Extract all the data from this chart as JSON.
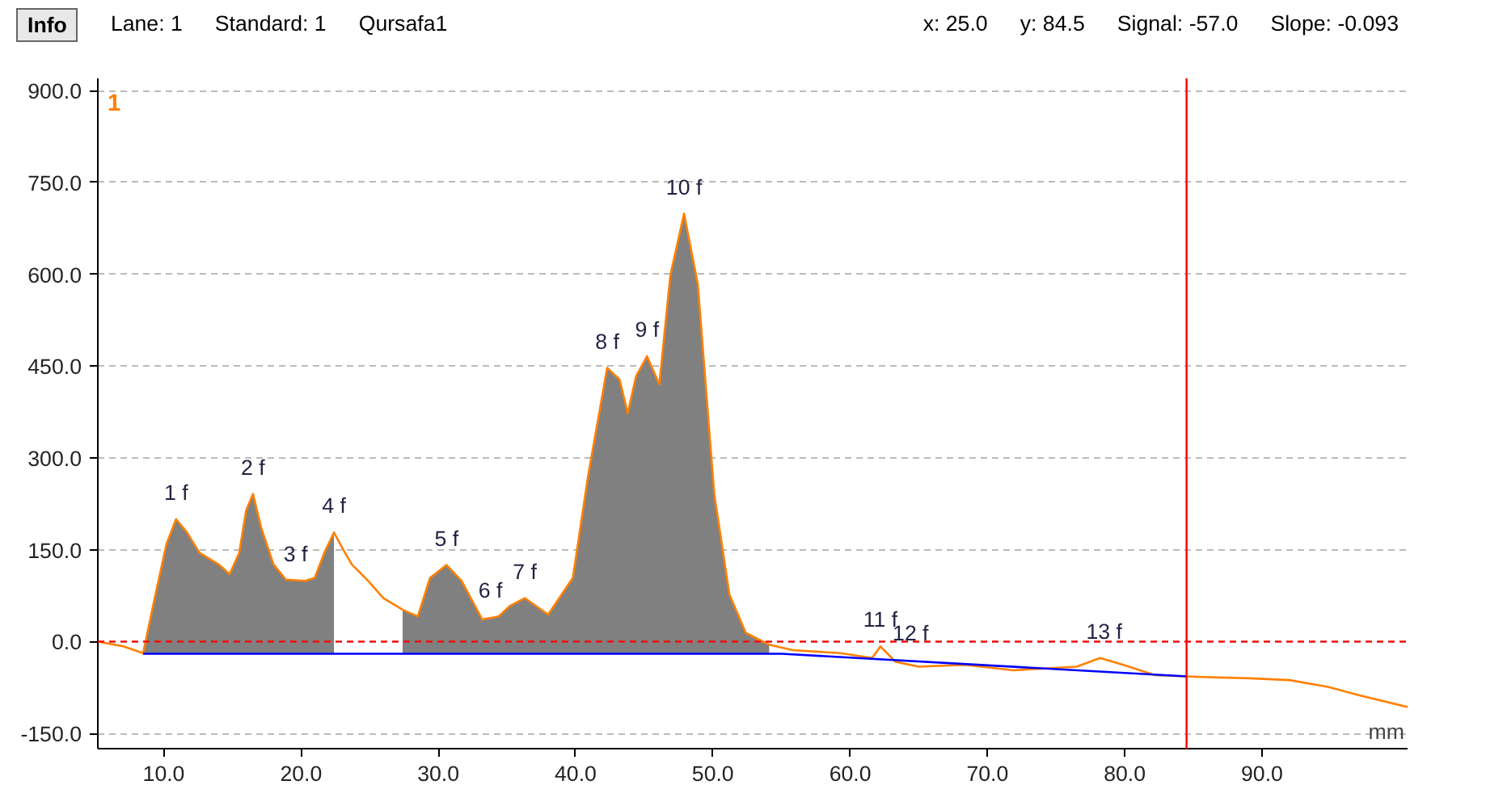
{
  "chart_data": {
    "type": "line",
    "title": "1",
    "xlabel": "mm",
    "annotations": [
      "Info",
      "Lane:  1",
      "Standard:  1",
      "Qursafa1",
      "x: 25.0",
      "y: 84.5",
      "Signal:  -57.0",
      "Slope:  -0.093",
      {
        "text": "1 f",
        "x": 10.9,
        "y": 200
      },
      {
        "text": "2 f",
        "x": 16.5,
        "y": 241
      },
      {
        "text": "3 f",
        "x": 19.6,
        "y": 99
      },
      {
        "text": "4 f",
        "x": 22.4,
        "y": 178
      },
      {
        "text": "5 f",
        "x": 30.6,
        "y": 125
      },
      {
        "text": "6 f",
        "x": 33.8,
        "y": 40
      },
      {
        "text": "7 f",
        "x": 36.3,
        "y": 71
      },
      {
        "text": "8 f",
        "x": 42.3,
        "y": 447
      },
      {
        "text": "9 f",
        "x": 45.2,
        "y": 466
      },
      {
        "text": "10 f",
        "x": 47.9,
        "y": 699
      },
      {
        "text": "11 f",
        "x": 62.2,
        "y": -8
      },
      {
        "text": "12 f",
        "x": 64.4,
        "y": -30
      },
      {
        "text": "13 f",
        "x": 78.5,
        "y": -27
      }
    ],
    "series": [
      {
        "color": "#ff8000",
        "x": [
          5.2,
          7.1,
          8.5,
          9.4,
          10.2,
          10.9,
          11.7,
          12.6,
          14.0,
          14.8,
          15.5,
          16.0,
          16.5,
          17.1,
          18.0,
          18.9,
          20.3,
          21.0,
          21.7,
          22.4,
          23.2,
          23.7,
          24.9,
          26.0,
          27.4,
          28.5,
          29.4,
          30.6,
          31.7,
          33.2,
          34.4,
          35.2,
          36.3,
          38.0,
          39.8,
          40.9,
          42.3,
          43.2,
          43.8,
          44.4,
          45.2,
          46.1,
          46.9,
          47.9,
          48.9,
          50.1,
          51.2,
          52.4,
          54.1,
          55.8,
          59.3,
          61.6,
          62.2,
          63.3,
          65.0,
          68.4,
          71.9,
          76.5,
          78.2,
          79.9,
          82.2,
          85.6,
          89.1,
          92.0,
          94.8,
          97.1,
          100.6
        ],
        "values": [
          0,
          -8,
          -19,
          77,
          159,
          200,
          178,
          145,
          126,
          110,
          145,
          214,
          241,
          186,
          126,
          101,
          99,
          104,
          145,
          178,
          145,
          126,
          99,
          71,
          52,
          41,
          104,
          125,
          99,
          36,
          41,
          58,
          71,
          44,
          104,
          269,
          447,
          428,
          373,
          433,
          466,
          420,
          598,
          699,
          584,
          241,
          77,
          14,
          -5,
          -14,
          -19,
          -27,
          -8,
          -33,
          -41,
          -38,
          -47,
          -41,
          -27,
          -38,
          -55,
          -58,
          -60,
          -63,
          -74,
          -88,
          -107
        ],
        "lower": [
          null,
          null,
          -20,
          -20,
          -20,
          -20,
          -20,
          -20,
          -20,
          -20,
          -20,
          -20,
          -20,
          -20,
          -20,
          -20,
          -20,
          -20,
          -20,
          -20,
          null,
          null,
          null,
          null,
          -20,
          -20,
          -20,
          -20,
          -20,
          -20,
          -20,
          -20,
          -20,
          -20,
          -20,
          -20,
          -20,
          -20,
          -20,
          -20,
          -20,
          -20,
          -20,
          -20,
          -20,
          -20,
          -20,
          -20,
          -20,
          null,
          null,
          null,
          null,
          null,
          null,
          null,
          null,
          null,
          null,
          null,
          null,
          null,
          null,
          null,
          null,
          null,
          null
        ],
        "upper": [
          null,
          null,
          -19,
          77,
          159,
          200,
          178,
          145,
          126,
          110,
          145,
          214,
          241,
          186,
          126,
          101,
          99,
          104,
          145,
          178,
          null,
          null,
          null,
          null,
          52,
          41,
          104,
          125,
          99,
          36,
          41,
          58,
          71,
          44,
          104,
          269,
          447,
          428,
          373,
          433,
          466,
          420,
          598,
          699,
          584,
          241,
          77,
          14,
          -5,
          null,
          null,
          null,
          null,
          null,
          null,
          null,
          null,
          null,
          null,
          null,
          null,
          null,
          null,
          null,
          null,
          null,
          null
        ]
      },
      {
        "color": "#0000ff",
        "x": [
          8.5,
          55.0,
          84.5
        ],
        "values": [
          -20,
          -20,
          -57
        ]
      }
    ],
    "ref_lines": [
      {
        "axis": "y",
        "value": 0,
        "color": "#ff0000",
        "line_style": "dashed"
      },
      {
        "axis": "x",
        "value": 84.5,
        "color": "#ff0000",
        "line_style": "solid"
      }
    ],
    "xlim": [
      5.2,
      100.6
    ],
    "ylim": [
      -175,
      920
    ],
    "xticks": [
      {
        "value": 10,
        "label": "10.0"
      },
      {
        "value": 20,
        "label": "20.0"
      },
      {
        "value": 30,
        "label": "30.0"
      },
      {
        "value": 40,
        "label": "40.0"
      },
      {
        "value": 50,
        "label": "50.0"
      },
      {
        "value": 60,
        "label": "60.0"
      },
      {
        "value": 70,
        "label": "70.0"
      },
      {
        "value": 80,
        "label": "80.0"
      },
      {
        "value": 90,
        "label": "90.0"
      }
    ],
    "yticks": [
      {
        "value": -150,
        "label": "-150.0"
      },
      {
        "value": 0,
        "label": "0.0"
      },
      {
        "value": 150,
        "label": "150.0"
      },
      {
        "value": 300,
        "label": "300.0"
      },
      {
        "value": 450,
        "label": "450.0"
      },
      {
        "value": 600,
        "label": "600.0"
      },
      {
        "value": 750,
        "label": "750.0"
      },
      {
        "value": 900,
        "label": "900.0"
      }
    ],
    "grid": "y",
    "marker": "none"
  }
}
